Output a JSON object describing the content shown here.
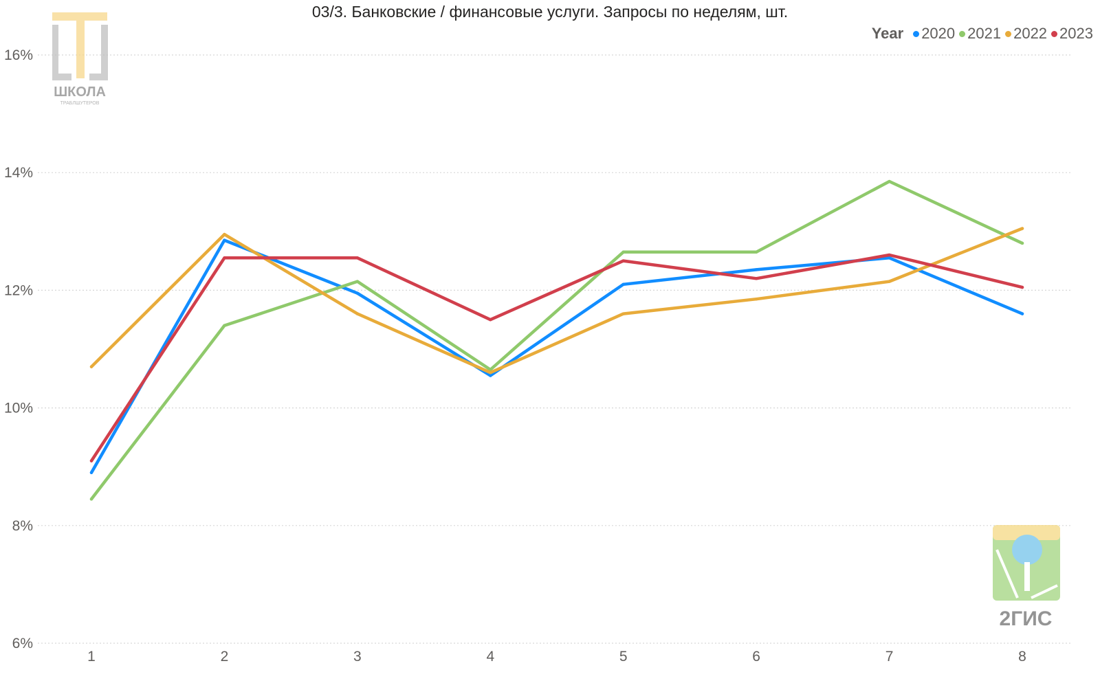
{
  "chart_data": {
    "type": "line",
    "title": "03/3. Банковские / финансовые услуги. Запросы по неделям, шт.",
    "legend_title": "Year",
    "legend_position": "top-right",
    "x": [
      1,
      2,
      3,
      4,
      5,
      6,
      7,
      8
    ],
    "x_tick_labels": [
      "1",
      "2",
      "3",
      "4",
      "5",
      "6",
      "7",
      "8"
    ],
    "y_tick_labels": [
      "6%",
      "8%",
      "10%",
      "12%",
      "14%",
      "16%"
    ],
    "y_ticks": [
      6,
      8,
      10,
      12,
      14,
      16
    ],
    "ylim": [
      6,
      16
    ],
    "y_unit": "%",
    "grid": true,
    "series": [
      {
        "name": "2020",
        "color": "#118dff",
        "values": [
          8.9,
          12.85,
          11.95,
          10.55,
          12.1,
          12.35,
          12.55,
          11.6
        ]
      },
      {
        "name": "2021",
        "color": "#8fc96b",
        "values": [
          8.45,
          11.4,
          12.15,
          10.65,
          12.65,
          12.65,
          13.85,
          12.8
        ]
      },
      {
        "name": "2022",
        "color": "#e8ab3a",
        "values": [
          10.7,
          12.95,
          11.6,
          10.6,
          11.6,
          11.85,
          12.15,
          13.05
        ]
      },
      {
        "name": "2023",
        "color": "#d13f4c",
        "values": [
          9.1,
          12.55,
          12.55,
          11.5,
          12.5,
          12.2,
          12.6,
          12.05
        ]
      }
    ]
  },
  "logos": {
    "school": {
      "name": "school-of-troubleshooters-logo",
      "text": "ШКОЛА",
      "subtext": "ТРАБЛШУТЕРОВ",
      "color": "#f5d27a"
    },
    "gis": {
      "name": "2gis-logo",
      "text": "2ГИС",
      "color": "#8fc96b"
    }
  }
}
